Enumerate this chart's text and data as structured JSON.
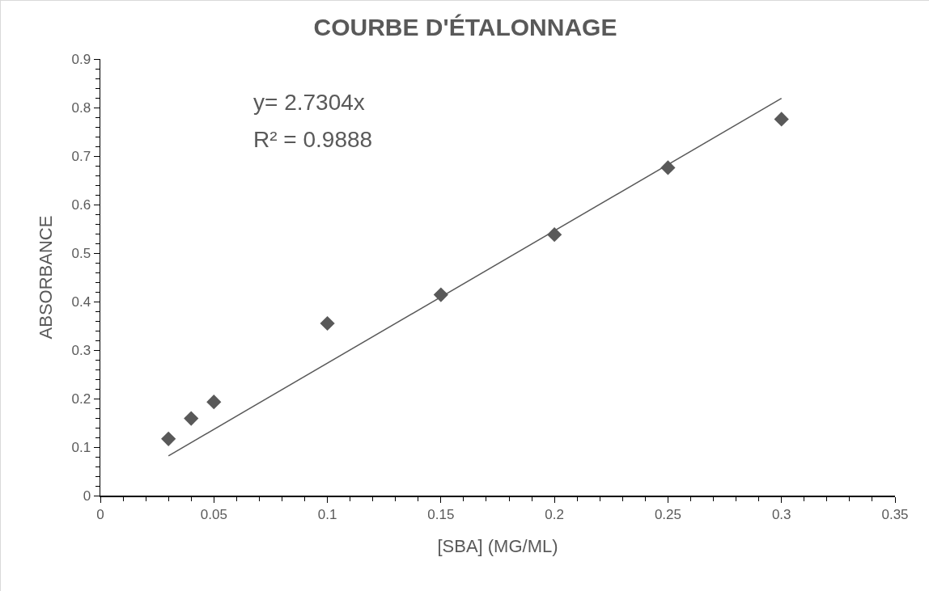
{
  "chart_data": {
    "type": "scatter",
    "title": "COURBE D'ÉTALONNAGE",
    "xlabel": "[SBA] (MG/ML)",
    "ylabel": "ABSORBANCE",
    "annotations": [
      "y= 2.7304x",
      "R² = 0.9888"
    ],
    "series": [
      {
        "color": "#595959",
        "marker": "diamond",
        "x": [
          0.03,
          0.04,
          0.05,
          0.1,
          0.15,
          0.2,
          0.25,
          0.3
        ],
        "values": [
          0.117,
          0.159,
          0.193,
          0.355,
          0.414,
          0.538,
          0.676,
          0.776
        ]
      },
      {
        "type": "line",
        "color": "#595959",
        "marker": "none",
        "x": [
          0.03,
          0.3
        ],
        "values": [
          0.082,
          0.819
        ]
      }
    ],
    "xlim": [
      0,
      0.35
    ],
    "xticks": [
      0,
      0.05,
      0.1,
      0.15,
      0.2,
      0.25,
      0.3,
      0.35
    ],
    "ylim": [
      0,
      0.9
    ],
    "yticks": [
      0,
      0.1,
      0.2,
      0.3,
      0.4,
      0.5,
      0.6,
      0.7,
      0.8,
      0.9
    ],
    "grid": false
  }
}
